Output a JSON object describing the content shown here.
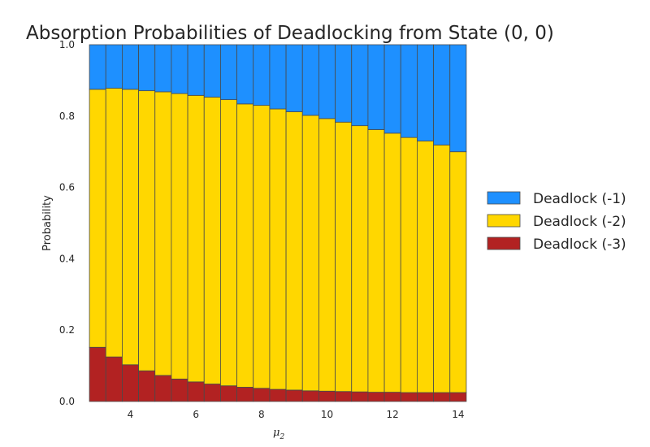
{
  "chart_data": {
    "type": "bar",
    "stacked": true,
    "title": "Absorption Probabilities of Deadlocking from State (0, 0)",
    "xlabel": {
      "symbol": "μ",
      "subscript": "2"
    },
    "ylabel": "Probability",
    "xlim": [
      2.5,
      14.5
    ],
    "ylim": [
      0.0,
      1.0
    ],
    "xticks": [
      4,
      6,
      8,
      10,
      12,
      14
    ],
    "yticks": [
      0.0,
      0.2,
      0.4,
      0.6,
      0.8,
      1.0
    ],
    "xtick_labels": [
      "4",
      "6",
      "8",
      "10",
      "12",
      "14"
    ],
    "ytick_labels": [
      "0.0",
      "0.2",
      "0.4",
      "0.6",
      "0.8",
      "1.0"
    ],
    "grid": false,
    "legend_position": "right",
    "x": [
      3.0,
      3.5,
      4.0,
      4.5,
      5.0,
      5.5,
      6.0,
      6.5,
      7.0,
      7.5,
      8.0,
      8.5,
      9.0,
      9.5,
      10.0,
      10.5,
      11.0,
      11.5,
      12.0,
      12.5,
      13.0,
      13.5,
      14.0
    ],
    "bar_width": 0.5,
    "series": [
      {
        "name": "Deadlock (-3)",
        "color": "#b22222",
        "values": [
          0.152,
          0.125,
          0.103,
          0.086,
          0.073,
          0.063,
          0.055,
          0.049,
          0.044,
          0.04,
          0.037,
          0.034,
          0.032,
          0.03,
          0.029,
          0.028,
          0.027,
          0.026,
          0.026,
          0.025,
          0.025,
          0.025,
          0.025
        ]
      },
      {
        "name": "Deadlock (-2)",
        "color": "#ffd700",
        "values": [
          0.723,
          0.753,
          0.772,
          0.785,
          0.795,
          0.8,
          0.803,
          0.804,
          0.802,
          0.794,
          0.793,
          0.786,
          0.78,
          0.772,
          0.764,
          0.755,
          0.746,
          0.736,
          0.726,
          0.715,
          0.705,
          0.694,
          0.675
        ]
      },
      {
        "name": "Deadlock (-1)",
        "color": "#1e90ff",
        "values": [
          0.125,
          0.122,
          0.125,
          0.129,
          0.132,
          0.137,
          0.142,
          0.147,
          0.154,
          0.166,
          0.17,
          0.18,
          0.188,
          0.198,
          0.207,
          0.217,
          0.227,
          0.238,
          0.248,
          0.26,
          0.27,
          0.281,
          0.3
        ]
      }
    ],
    "legend_order": [
      "Deadlock (-1)",
      "Deadlock (-2)",
      "Deadlock (-3)"
    ],
    "bar_edge_color": "#4a4a4a"
  }
}
